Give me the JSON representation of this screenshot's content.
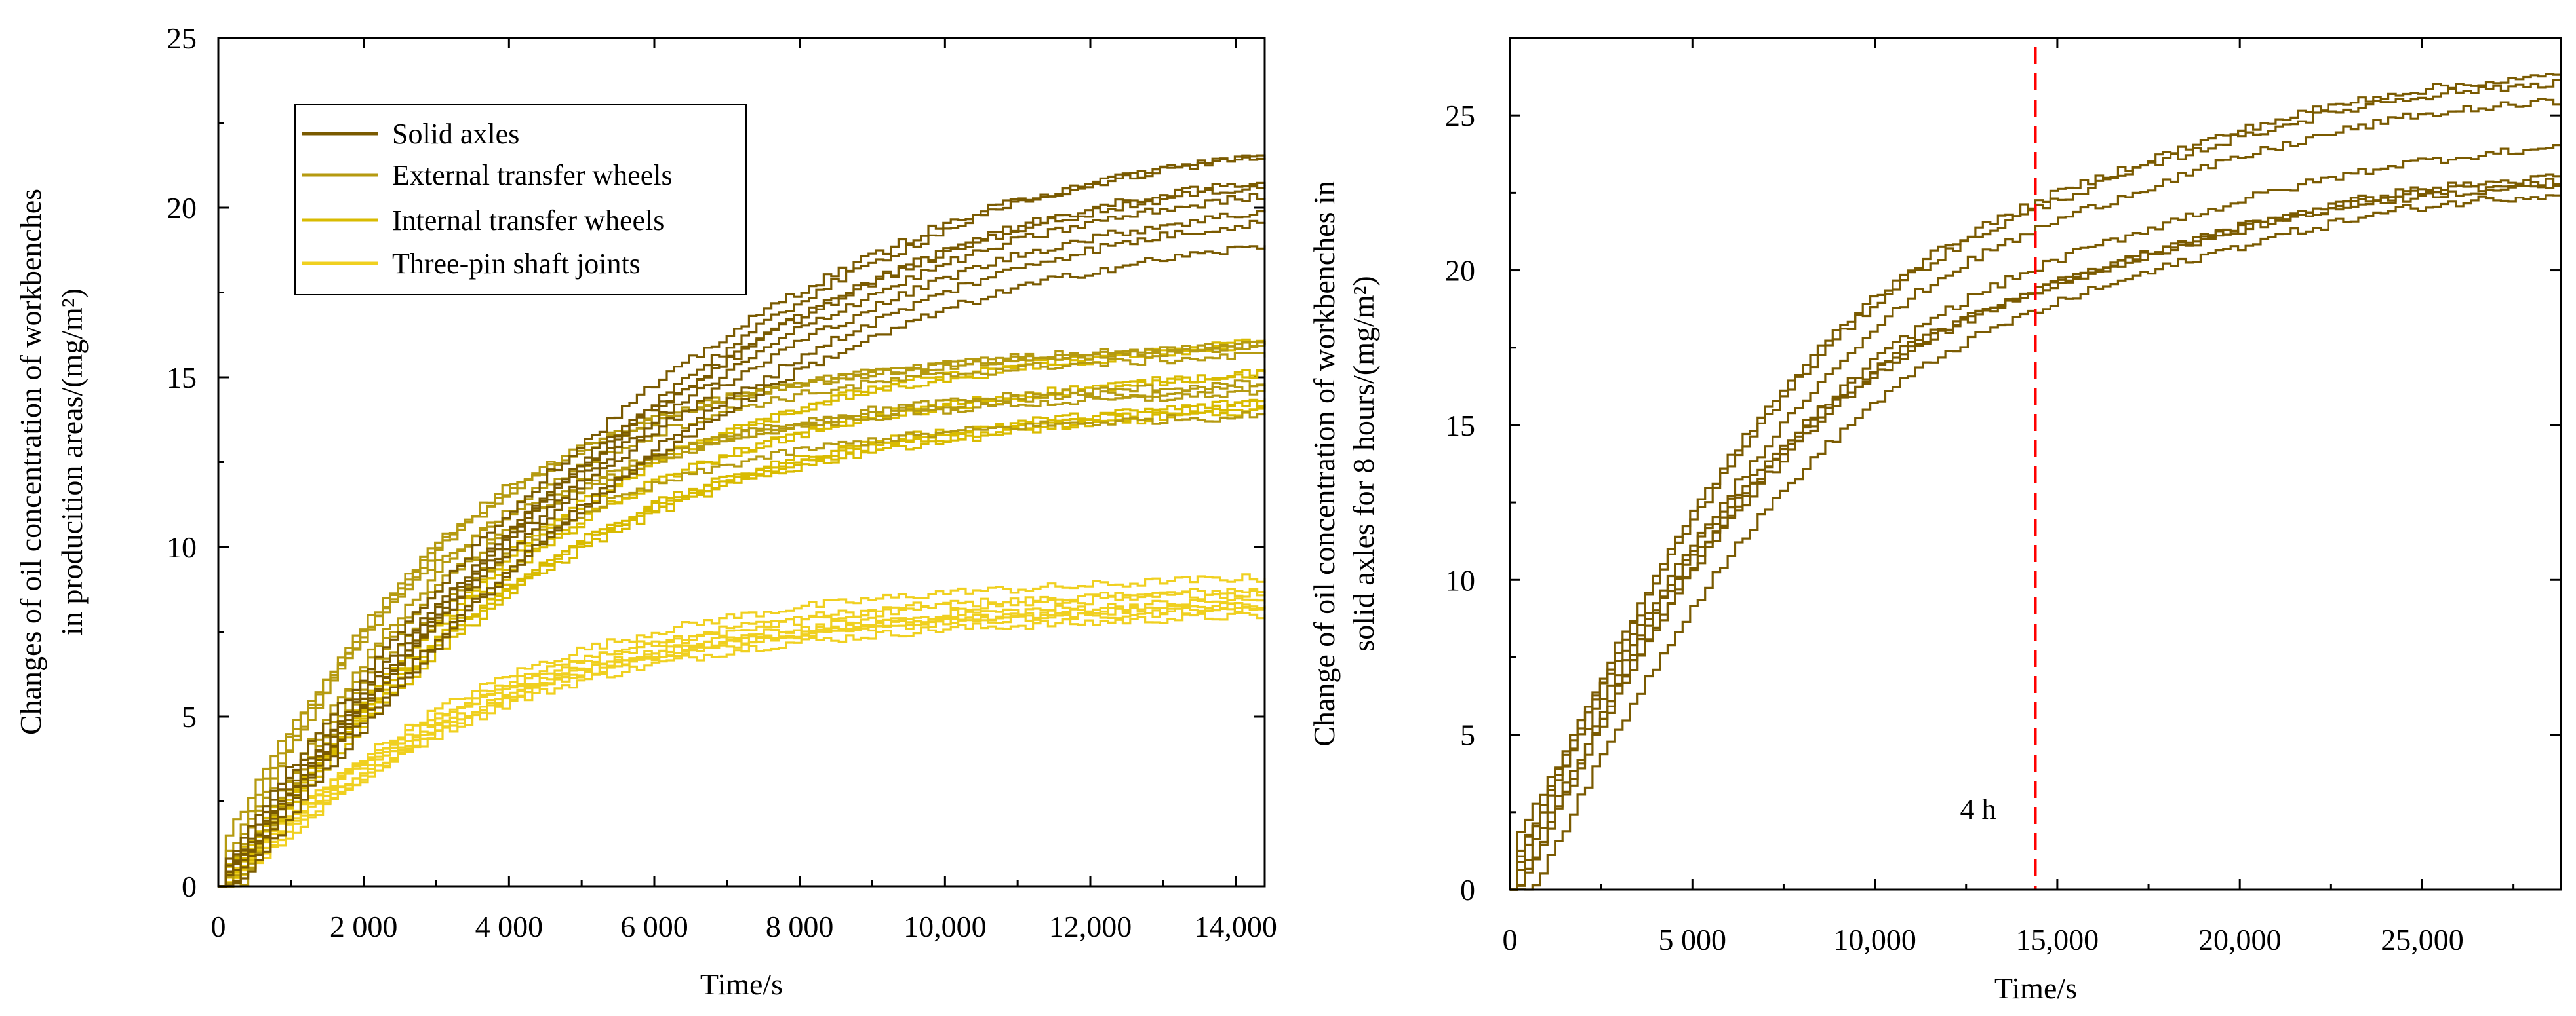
{
  "chart_data": [
    {
      "type": "line",
      "xlabel": "Time/s",
      "ylabel": "Changes of oil concentration of workbenches in producition areas/(mg/m²)",
      "ylabel_lines": [
        "Changes of oil concentration of workbenches",
        "in producition areas/(mg/m²)"
      ],
      "xlim": [
        0,
        14400
      ],
      "ylim": [
        0,
        25
      ],
      "xticks": [
        0,
        2000,
        4000,
        6000,
        8000,
        10000,
        12000,
        14000
      ],
      "xtick_labels": [
        "0",
        "2 000",
        "4 000",
        "6 000",
        "8 000",
        "10,000",
        "12,000",
        "14,000"
      ],
      "yticks": [
        0,
        5,
        10,
        15,
        20,
        25
      ],
      "ytick_labels": [
        "0",
        "5",
        "10",
        "15",
        "20",
        "25"
      ],
      "legend_position": "top-left",
      "x": [
        0,
        500,
        1000,
        2000,
        3000,
        4000,
        5000,
        6000,
        7000,
        8000,
        9000,
        10000,
        11000,
        12000,
        13000,
        14000,
        14400
      ],
      "series": [
        {
          "name": "Solid axles",
          "color": "#7a5a00",
          "runs": 8,
          "values": [
            0,
            1.2,
            2.8,
            5.3,
            7.8,
            10.0,
            11.9,
            13.6,
            15.0,
            16.3,
            17.3,
            18.2,
            18.9,
            19.4,
            19.8,
            20.1,
            20.2
          ]
        },
        {
          "name": "External transfer wheels",
          "color": "#b59a10",
          "runs": 8,
          "values": [
            0,
            2.0,
            4.0,
            7.0,
            9.3,
            10.9,
            12.0,
            12.8,
            13.4,
            13.8,
            14.1,
            14.3,
            14.5,
            14.6,
            14.7,
            14.8,
            14.9
          ]
        },
        {
          "name": "Internal transfer wheels",
          "color": "#d9bb00",
          "runs": 8,
          "values": [
            0,
            1.4,
            2.8,
            5.3,
            7.5,
            9.3,
            10.7,
            11.8,
            12.6,
            13.2,
            13.7,
            14.0,
            14.3,
            14.5,
            14.7,
            14.9,
            15.0
          ]
        },
        {
          "name": "Three-pin shaft joints",
          "color": "#f0d020",
          "runs": 8,
          "values": [
            0,
            0.9,
            1.9,
            3.5,
            4.8,
            5.8,
            6.5,
            7.0,
            7.4,
            7.7,
            7.9,
            8.1,
            8.2,
            8.3,
            8.4,
            8.5,
            8.5
          ]
        }
      ]
    },
    {
      "type": "line",
      "xlabel": "Time/s",
      "ylabel": "Change of oil concentration of workbenches in solid axles for 8 hours/(mg/m²)",
      "ylabel_lines": [
        "Change of oil concentration of workbenches in",
        "solid axles for 8 hours/(mg/m²)"
      ],
      "xlim": [
        0,
        28800
      ],
      "ylim": [
        0,
        27.5
      ],
      "xticks": [
        0,
        5000,
        10000,
        15000,
        20000,
        25000
      ],
      "xtick_labels": [
        "0",
        "5 000",
        "10,000",
        "15,000",
        "20,000",
        "25,000"
      ],
      "yticks": [
        0,
        5,
        10,
        15,
        20,
        25
      ],
      "ytick_labels": [
        "0",
        "5",
        "10",
        "15",
        "20",
        "25"
      ],
      "x": [
        0,
        1000,
        2000,
        3000,
        4000,
        5000,
        6000,
        7000,
        8000,
        9000,
        10000,
        11000,
        12000,
        13000,
        14000,
        15000,
        16000,
        18000,
        20000,
        22000,
        24000,
        26000,
        28000,
        28800
      ],
      "series": [
        {
          "name": "Solid axles",
          "color": "#7a5a00",
          "runs": 8,
          "values": [
            0,
            2.4,
            4.8,
            7.0,
            9.1,
            11.0,
            12.6,
            14.1,
            15.4,
            16.6,
            17.6,
            18.5,
            19.2,
            19.8,
            20.3,
            20.8,
            21.2,
            22.0,
            22.7,
            23.3,
            23.8,
            24.1,
            24.3,
            24.4
          ]
        }
      ],
      "annotations": [
        {
          "label": "4 h",
          "x": 14400,
          "line_color": "#ff0000",
          "line_style": "dashed"
        }
      ]
    }
  ]
}
